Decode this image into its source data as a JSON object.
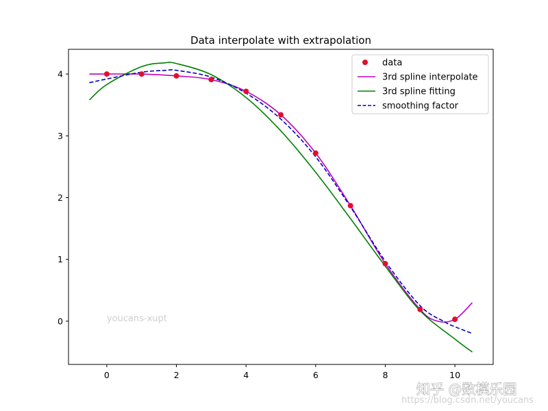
{
  "chart_data": {
    "type": "line",
    "title": "Data interpolate with extrapolation",
    "xlabel": "",
    "ylabel": "",
    "xlim": [
      -1.1,
      11.1
    ],
    "ylim": [
      -0.7,
      4.4
    ],
    "xticks": [
      0,
      2,
      4,
      6,
      8,
      10
    ],
    "yticks": [
      0,
      1,
      2,
      3,
      4
    ],
    "grid": false,
    "legend_position": "top-right",
    "series": [
      {
        "name": "data",
        "style": "markers",
        "color": "#e0102f",
        "x": [
          0,
          1,
          2,
          3,
          4,
          5,
          6,
          7,
          8,
          9,
          10
        ],
        "y": [
          4.0,
          4.0,
          3.97,
          3.91,
          3.72,
          3.34,
          2.72,
          1.87,
          0.93,
          0.19,
          0.03
        ]
      },
      {
        "name": "3rd spline interpolate",
        "style": "solid",
        "color": "#bf00bf",
        "x": [
          -0.5,
          0,
          1,
          2,
          3,
          4,
          5,
          6,
          7,
          8,
          9,
          9.5,
          10,
          10.5
        ],
        "y": [
          4.0,
          4.0,
          4.0,
          3.97,
          3.91,
          3.72,
          3.34,
          2.72,
          1.87,
          0.93,
          0.19,
          0.0,
          0.03,
          0.3
        ]
      },
      {
        "name": "3rd spline fitting",
        "style": "solid",
        "color": "#008000",
        "x": [
          -0.5,
          0,
          1,
          1.65,
          2,
          3,
          4,
          5,
          6,
          7,
          8,
          9,
          10,
          10.5
        ],
        "y": [
          3.58,
          3.83,
          4.12,
          4.18,
          4.17,
          3.99,
          3.62,
          3.08,
          2.41,
          1.66,
          0.89,
          0.17,
          -0.29,
          -0.5
        ]
      },
      {
        "name": "smoothing factor",
        "style": "dashed",
        "color": "#0000bf",
        "x": [
          -0.5,
          0,
          1,
          1.7,
          2,
          3,
          4,
          5,
          6,
          7,
          8,
          9,
          9.7,
          10,
          10.5
        ],
        "y": [
          3.86,
          3.92,
          4.03,
          4.06,
          4.06,
          3.95,
          3.69,
          3.27,
          2.66,
          1.85,
          0.97,
          0.25,
          -0.01,
          -0.09,
          -0.2
        ]
      }
    ],
    "annotations": [
      {
        "text": "youcans-xupt",
        "x": 0,
        "y": 0.0
      }
    ]
  },
  "watermark": {
    "main": "知乎 @数模乐园",
    "url": "https://blog.csdn.net/youcans"
  }
}
